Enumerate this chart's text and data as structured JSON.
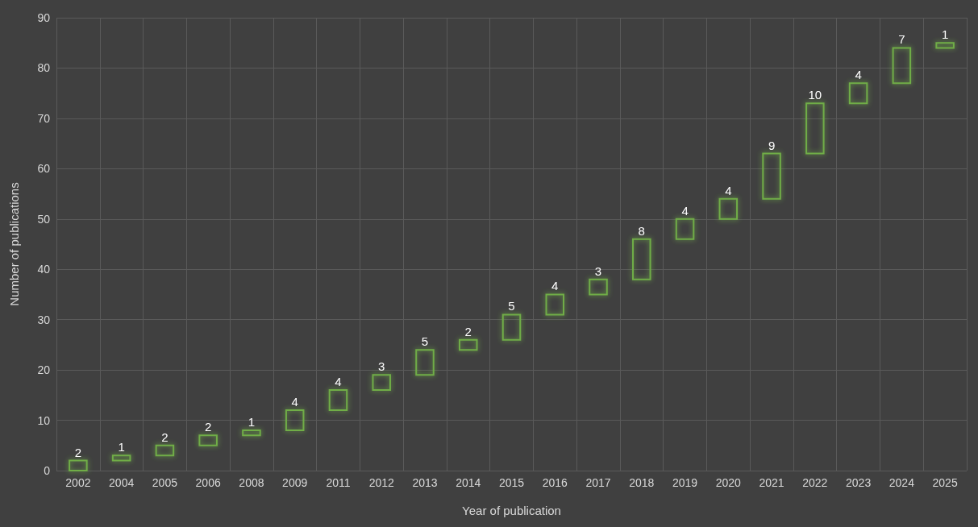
{
  "chart_data": {
    "type": "bar",
    "xlabel": "Year of publication",
    "ylabel": "Number of publications",
    "categories": [
      "2002",
      "2004",
      "2005",
      "2006",
      "2008",
      "2009",
      "2011",
      "2012",
      "2013",
      "2014",
      "2015",
      "2016",
      "2017",
      "2018",
      "2019",
      "2020",
      "2021",
      "2022",
      "2023",
      "2024",
      "2025"
    ],
    "values": [
      2,
      1,
      2,
      2,
      1,
      4,
      4,
      3,
      5,
      2,
      5,
      4,
      3,
      8,
      4,
      4,
      9,
      10,
      4,
      7,
      1
    ],
    "base": [
      0,
      2,
      3,
      5,
      7,
      8,
      12,
      16,
      19,
      24,
      26,
      31,
      35,
      38,
      46,
      50,
      54,
      63,
      73,
      77,
      84
    ],
    "color": "#70ad47",
    "ylim": [
      0,
      90
    ],
    "yticks": [
      0,
      10,
      20,
      30,
      40,
      50,
      60,
      70,
      80,
      90
    ],
    "grid": true,
    "data_labels": true
  }
}
